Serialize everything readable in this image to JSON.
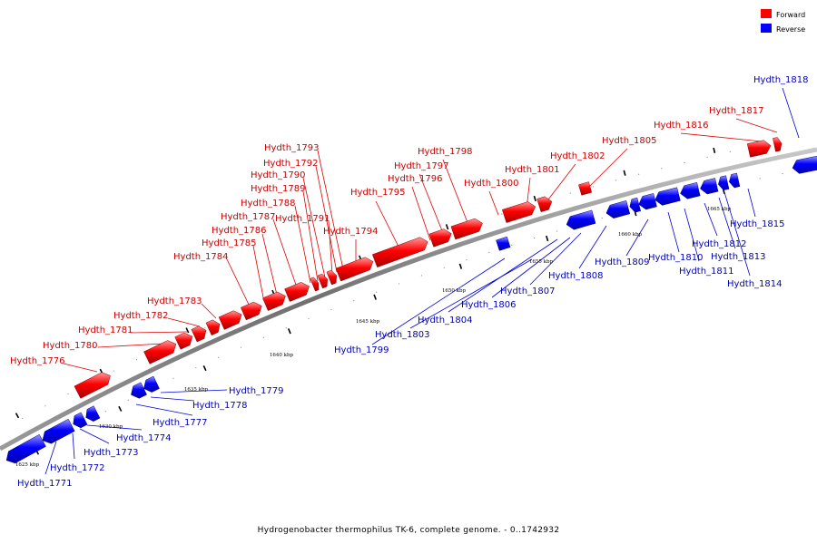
{
  "legend": [
    {
      "label": "Forward",
      "color": "#ff0000"
    },
    {
      "label": "Reverse",
      "color": "#0000ff"
    }
  ],
  "caption": "Hydrogenobacter thermophilus TK-6, complete genome. - 0..1742932",
  "backbone_color": "#808080",
  "ticks": [
    "1625 kbp",
    "1630 kbp",
    "1635 kbp",
    "1640 kbp",
    "1645 kbp",
    "1650 kbp",
    "1655 kbp",
    "1660 kbp",
    "1665 kbp"
  ],
  "forward_genes": [
    "Hydth_1776",
    "Hydth_1780",
    "Hydth_1781",
    "Hydth_1782",
    "Hydth_1783",
    "Hydth_1784",
    "Hydth_1785",
    "Hydth_1786",
    "Hydth_1787",
    "Hydth_1788",
    "Hydth_1789",
    "Hydth_1790",
    "Hydth_1791",
    "Hydth_1792",
    "Hydth_1793",
    "Hydth_1794",
    "Hydth_1795",
    "Hydth_1796",
    "Hydth_1797",
    "Hydth_1798",
    "Hydth_1800",
    "Hydth_1801",
    "Hydth_1802",
    "Hydth_1805",
    "Hydth_1816",
    "Hydth_1817"
  ],
  "reverse_genes": [
    "Hydth_1771",
    "Hydth_1772",
    "Hydth_1773",
    "Hydth_1774",
    "Hydth_1777",
    "Hydth_1778",
    "Hydth_1779",
    "Hydth_1799",
    "Hydth_1803",
    "Hydth_1804",
    "Hydth_1806",
    "Hydth_1807",
    "Hydth_1808",
    "Hydth_1809",
    "Hydth_1810",
    "Hydth_1811",
    "Hydth_1812",
    "Hydth_1813",
    "Hydth_1814",
    "Hydth_1815",
    "Hydth_1818"
  ]
}
